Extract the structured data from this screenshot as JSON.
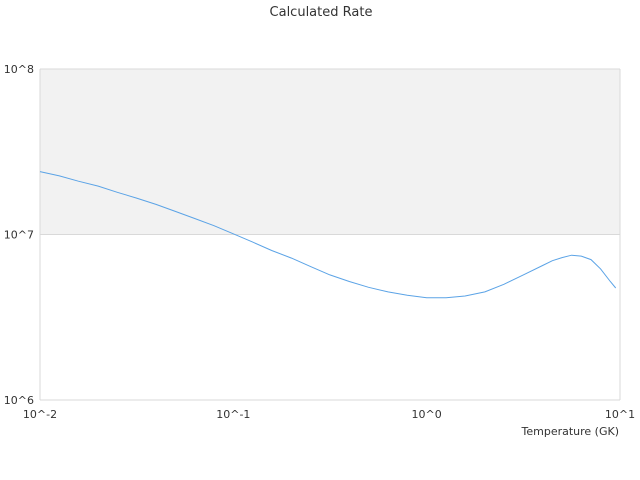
{
  "chart_data": {
    "type": "line",
    "title": "Calculated Rate",
    "xlabel": "Temperature (GK)",
    "ylabel": "",
    "xscale": "log",
    "yscale": "log",
    "xlim": [
      0.01,
      10
    ],
    "ylim": [
      1000000,
      100000000
    ],
    "x_tick_labels": [
      "10^-2",
      "10^-1",
      "10^0",
      "10^1"
    ],
    "y_tick_labels": [
      "10^6",
      "10^7",
      "10^8"
    ],
    "grid": false,
    "shaded_band": {
      "y_from": 10000000,
      "y_to": 100000000,
      "color": "#f2f2f2"
    },
    "series": [
      {
        "color": "#5ba3e6",
        "x": [
          0.01,
          0.0126,
          0.0158,
          0.02,
          0.0251,
          0.0316,
          0.0398,
          0.0501,
          0.0631,
          0.0794,
          0.1,
          0.126,
          0.158,
          0.2,
          0.251,
          0.316,
          0.398,
          0.501,
          0.631,
          0.794,
          1.0,
          1.26,
          1.58,
          2.0,
          2.51,
          3.16,
          3.98,
          4.47,
          5.01,
          5.62,
          6.31,
          7.08,
          7.94,
          8.91,
          9.5
        ],
        "y": [
          24000000,
          22600000,
          21000000,
          19600000,
          18000000,
          16600000,
          15200000,
          13800000,
          12500000,
          11300000,
          10100000,
          9000000,
          8000000,
          7200000,
          6400000,
          5700000,
          5200000,
          4800000,
          4500000,
          4300000,
          4150000,
          4150000,
          4250000,
          4500000,
          5000000,
          5700000,
          6500000,
          6950000,
          7250000,
          7500000,
          7400000,
          7050000,
          6200000,
          5200000,
          4750000
        ]
      }
    ],
    "colors": {
      "axis": "#d9d9d9",
      "band": "#f2f2f2",
      "line": "#5ba3e6",
      "text": "#333333"
    }
  }
}
